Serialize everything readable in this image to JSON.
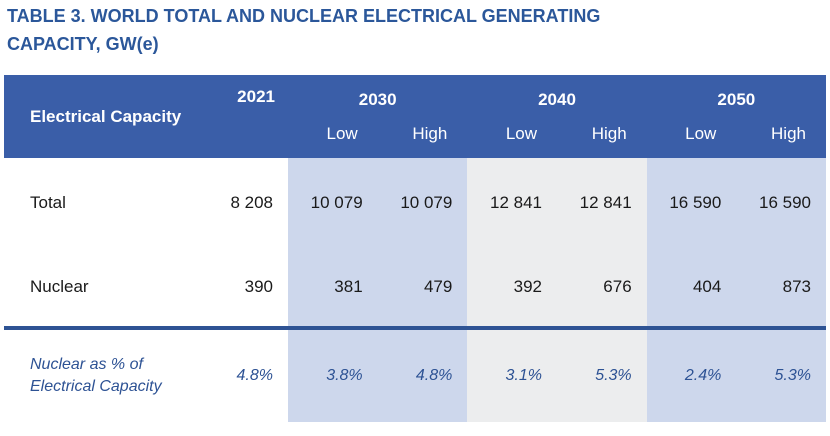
{
  "title": "TABLE 3. WORLD TOTAL AND NUCLEAR ELECTRICAL GENERATING CAPACITY, GW(e)",
  "table": {
    "header": {
      "row_label": "Electrical Capacity",
      "year_single": "2021",
      "groups": [
        {
          "year": "2030",
          "subs": [
            "Low",
            "High"
          ]
        },
        {
          "year": "2040",
          "subs": [
            "Low",
            "High"
          ]
        },
        {
          "year": "2050",
          "subs": [
            "Low",
            "High"
          ]
        }
      ]
    },
    "rows": [
      {
        "label": "Total",
        "values": [
          "8 208",
          "10 079",
          "10 079",
          "12 841",
          "12 841",
          "16 590",
          "16 590"
        ]
      },
      {
        "label": "Nuclear",
        "values": [
          "390",
          "381",
          "479",
          "392",
          "676",
          "404",
          "873"
        ]
      }
    ],
    "footer": {
      "label": "Nuclear as % of Electrical Capacity",
      "values": [
        "4.8%",
        "3.8%",
        "4.8%",
        "3.1%",
        "5.3%",
        "2.4%",
        "5.3%"
      ]
    }
  },
  "colors": {
    "title_text": "#2b579a",
    "header_bg": "#3a5ea8",
    "header_text": "#ffffff",
    "band_blue": "#cdd7ec",
    "band_gray": "#ecedee",
    "separator": "#2e5394",
    "footer_text": "#2d5294",
    "body_text": "#1a1a1a"
  }
}
